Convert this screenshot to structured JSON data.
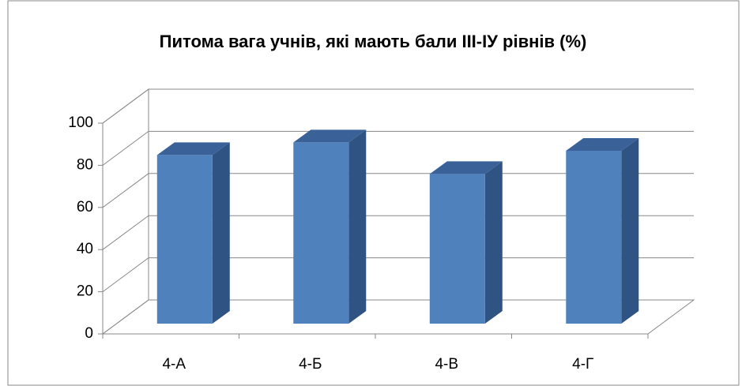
{
  "chart_data": {
    "type": "bar3d",
    "title": "Питома вага учнів, які мають бали ІІІ-ІУ  рівнів (%)",
    "categories": [
      "4-А",
      "4-Б",
      "4-В",
      "4-Г"
    ],
    "values": [
      80,
      86,
      71,
      82
    ],
    "color": "#4f81bd",
    "ylim": [
      0,
      100
    ],
    "yticks": [
      0,
      20,
      40,
      60,
      80,
      100
    ],
    "grid": true
  }
}
